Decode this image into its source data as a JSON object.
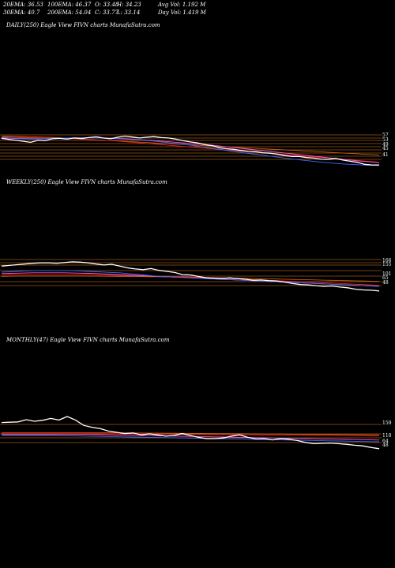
{
  "header": {
    "ema20": "20EMA: 36.53",
    "ema100": "100EMA: 46.37",
    "open": "O: 33.48",
    "high": "H: 34.23",
    "avg_vol": "Avg Vol: 1.192  M",
    "ema30": "30EMA: 40.7",
    "ema200": "200EMA: 54.04",
    "close": "C: 33.77",
    "low": "L: 33.14",
    "day_vol": "Day Vol: 1.419 M"
  },
  "panels": {
    "daily": "DAILY(250) Eagle   View  FIVN  charts MunafaSutra.com",
    "weekly": "WEEKLY(250) Eagle   View  FIVN  charts MunafaSutra.com",
    "monthly": "MONTHLY(47) Eagle   View  FIVN  charts MunafaSutra.com"
  },
  "colors": {
    "price": "#ffffff",
    "ema_blue": "#3a6bff",
    "ema_pink": "#ff55cc",
    "ema_orange": "#d96a10",
    "ema_red": "#ff2222",
    "level_line": "#b5651d"
  },
  "chart_data": [
    {
      "type": "line",
      "title": "DAILY(250) Eagle   View  FIVN  charts MunafaSutra.com",
      "axis_labels": [
        "57",
        "53",
        "49",
        "45",
        "41"
      ],
      "series": [
        {
          "values": [
            57,
            56.5,
            56,
            55.5,
            55,
            56,
            55.8,
            56.8,
            57,
            56.6,
            57.2,
            56.9,
            57.4,
            57.8,
            57.2,
            56.8,
            57.6,
            58.2,
            57.7,
            57.2,
            57.6,
            57.9,
            57.4,
            57.2,
            56.6,
            55.8,
            55.2,
            54.7,
            53.8,
            53.3,
            52.2,
            51.7,
            51.4,
            50.8,
            50.3,
            50.2,
            49.6,
            49.4,
            48.9,
            48.2,
            47.7,
            47.7,
            47.2,
            46.9,
            46.3,
            46.2,
            46.8,
            45.9,
            45.3,
            44.7,
            43.7,
            43.4,
            43.4
          ]
        },
        {
          "values": [
            57.5,
            57.3,
            57.1,
            57,
            56.9,
            56.9,
            56.9,
            57,
            57.1,
            57.2,
            57.3,
            57.3,
            57.3,
            57.2,
            57.1,
            56.9,
            56.8,
            56.6,
            56.4,
            56.2,
            56,
            55.6,
            55.2,
            54.8,
            54.4,
            54,
            53.5,
            53,
            52.5,
            52,
            51.4,
            50.8,
            50.3,
            49.8,
            49.3,
            48.9,
            48.4,
            47.9,
            47.4,
            46.9,
            46.4,
            46,
            45.6,
            45.2,
            44.8,
            44.5,
            44.2,
            43.9,
            43.7,
            43.5,
            43.3,
            43.2,
            43.1
          ]
        },
        {
          "values": [
            57.3,
            57.1,
            56.9,
            56.8,
            56.7,
            56.7,
            56.8,
            56.9,
            57,
            57.1,
            57.2,
            57.3,
            57.3,
            57.3,
            57.2,
            57.1,
            57,
            56.8,
            56.6,
            56.4,
            56.2,
            55.9,
            55.6,
            55.3,
            55,
            54.7,
            54.4,
            54.1,
            53.8,
            53.5,
            53.1,
            52.7,
            52.3,
            51.9,
            51.5,
            51.1,
            50.7,
            50.3,
            49.9,
            49.5,
            49.1,
            48.7,
            48.3,
            47.9,
            47.5,
            47.1,
            46.7,
            46.3,
            45.9,
            45.5,
            45.2,
            44.9,
            44.6
          ]
        },
        {
          "values": [
            57.8,
            57.7,
            57.6,
            57.5,
            57.4,
            57.3,
            57.2,
            57.1,
            57,
            56.9,
            56.8,
            56.6,
            56.4,
            56.2,
            56,
            55.8,
            55.6,
            55.3,
            55,
            54.7,
            54.4,
            54.1,
            53.8,
            53.5,
            53.2,
            52.9,
            52.6,
            52.3,
            52,
            51.7,
            51.4,
            51.1,
            50.8,
            50.5,
            50.2,
            49.9,
            49.6,
            49.3,
            49,
            48.7,
            48.4,
            48.1,
            47.8,
            47.5,
            47.2,
            46.9,
            46.6,
            46.3,
            46,
            45.7,
            45.4,
            45.1,
            44.8
          ]
        },
        {
          "values": [
            58.2,
            58.1,
            58,
            57.9,
            57.8,
            57.7,
            57.6,
            57.5,
            57.3,
            57.1,
            56.9,
            56.7,
            56.5,
            56.3,
            56.1,
            55.9,
            55.7,
            55.5,
            55.3,
            55.1,
            54.9,
            54.7,
            54.5,
            54.3,
            54.1,
            53.9,
            53.7,
            53.5,
            53.3,
            53.1,
            52.9,
            52.7,
            52.5,
            52.3,
            52.1,
            51.9,
            51.7,
            51.5,
            51.3,
            51.1,
            50.9,
            50.7,
            50.5,
            50.3,
            50.1,
            49.9,
            49.7,
            49.5,
            49.3,
            49.1,
            48.9,
            48.7,
            48.5
          ]
        }
      ]
    },
    {
      "type": "line",
      "title": "WEEKLY(250) Eagle   View  FIVN  charts MunafaSutra.com",
      "axis_labels": [
        "166",
        "155",
        "101",
        "65",
        "48"
      ],
      "series": [
        {
          "values": [
            125,
            127,
            129,
            131,
            133,
            134,
            134,
            133,
            135,
            137,
            136,
            134,
            131,
            128,
            130,
            125,
            120,
            117,
            115,
            118,
            113,
            110,
            107,
            101,
            100,
            96,
            92,
            91,
            90,
            92,
            90,
            88,
            85,
            86,
            84,
            83,
            80,
            76,
            73,
            72,
            70,
            68,
            69,
            66,
            64,
            60,
            58,
            57,
            55
          ]
        },
        {
          "values": [
            108,
            109,
            110,
            111,
            112,
            112,
            112,
            112,
            112,
            112,
            111,
            110,
            109,
            108,
            107,
            106,
            104,
            102,
            100,
            98,
            96,
            95,
            94,
            93,
            92,
            91,
            90,
            89,
            88,
            87,
            86,
            85,
            84,
            83,
            82,
            81,
            80,
            79,
            78,
            77,
            76,
            75,
            74,
            73,
            72,
            71,
            70,
            69,
            68
          ]
        },
        {
          "values": [
            104,
            104.5,
            105,
            105.5,
            106,
            106,
            106,
            106,
            106,
            105.5,
            105,
            104.5,
            104,
            103,
            102,
            101,
            100,
            99,
            98,
            97,
            96,
            95,
            94,
            93,
            92,
            91,
            90,
            89,
            88,
            87,
            86,
            85,
            84,
            83,
            82,
            81,
            80,
            79,
            78,
            77,
            76,
            75,
            74,
            73,
            72,
            71,
            70,
            69,
            68
          ]
        },
        {
          "values": [
            100,
            100.5,
            101,
            101,
            101,
            101,
            101,
            101,
            101,
            101,
            101,
            101,
            100.5,
            100,
            99.5,
            99,
            98.5,
            98,
            97.5,
            97,
            96.5,
            96,
            95.5,
            95,
            94.5,
            94,
            93,
            92,
            91,
            90,
            89,
            88,
            87,
            86,
            85,
            84,
            83,
            82,
            81,
            80,
            79,
            78,
            77,
            76,
            75,
            74,
            73,
            72,
            71
          ]
        },
        {
          "values": [
            96,
            96.5,
            97,
            97,
            97,
            97,
            97,
            97,
            97,
            97,
            97,
            97,
            96.8,
            96.6,
            96.4,
            96.2,
            96,
            95.7,
            95.4,
            95.1,
            94.8,
            94.5,
            94.2,
            93.9,
            93.5,
            93.1,
            92.7,
            92.3,
            91.9,
            91.5,
            91,
            90.5,
            90,
            89.5,
            89,
            88.5,
            88,
            87.5,
            87,
            86.5,
            86,
            85.5,
            85,
            84.5,
            84,
            83.5,
            83,
            82.5,
            82
          ]
        }
      ]
    },
    {
      "type": "line",
      "title": "MONTHLY(47) Eagle   View  FIVN  charts MunafaSutra.com",
      "axis_labels": [
        "159",
        "110",
        "64",
        "48"
      ],
      "series": [
        {
          "values": [
            131,
            132,
            133,
            140,
            135,
            138,
            144,
            139,
            150,
            139,
            122,
            116,
            112,
            104,
            100,
            96,
            98,
            92,
            95,
            92,
            88,
            90,
            96,
            90,
            84,
            80,
            80,
            82,
            88,
            92,
            84,
            79,
            80,
            76,
            80,
            78,
            74,
            68,
            64,
            65,
            66,
            64,
            62,
            59,
            57,
            52,
            48
          ]
        },
        {
          "values": [
            90,
            90,
            90,
            90,
            90,
            90,
            90,
            89.5,
            89,
            88.5,
            88,
            87.5,
            87,
            86.5,
            86,
            85.5,
            85,
            84.5,
            84,
            83.5,
            83,
            82.5,
            82,
            81.5,
            81,
            80.5,
            80,
            79.5,
            79,
            78.5,
            78,
            77.5,
            77,
            76.5,
            76,
            75.5,
            75,
            74.5,
            74,
            73.5,
            73,
            72.5,
            72,
            71.5,
            71,
            70.5,
            70
          ]
        },
        {
          "values": [
            93,
            93,
            93,
            93,
            93,
            93,
            93,
            93,
            93,
            93,
            93,
            93,
            92.5,
            92,
            91.5,
            91,
            90.5,
            90,
            89.5,
            89,
            88.5,
            88,
            87.5,
            87,
            86.5,
            86,
            85.5,
            85,
            84.5,
            84,
            83.5,
            83,
            82.5,
            82,
            81.5,
            81,
            80.5,
            80,
            79.5,
            79,
            78.5,
            78,
            77.5,
            77,
            76.5,
            76,
            75.5
          ]
        },
        {
          "values": [
            96,
            96,
            96,
            96,
            96,
            96,
            96,
            96,
            96,
            96,
            96,
            96,
            95.8,
            95.6,
            95.4,
            95.2,
            95,
            94.8,
            94.6,
            94.4,
            94.2,
            94,
            93.8,
            93.6,
            93.4,
            93.2,
            93,
            92.8,
            92.6,
            92.4,
            92.2,
            92,
            91.8,
            91.6,
            91.4,
            91.2,
            91,
            90.8,
            90.6,
            90.4,
            90.2,
            90,
            89.8,
            89.6,
            89.4,
            89.2,
            89
          ]
        },
        {
          "values": [
            99,
            99,
            99,
            99,
            99,
            99,
            99,
            99,
            99,
            99,
            99,
            99,
            98.8,
            98.6,
            98.4,
            98.2,
            98,
            97.8,
            97.6,
            97.4,
            97.2,
            97,
            96.8,
            96.6,
            96.4,
            96.2,
            96,
            95.8,
            95.6,
            95.4,
            95.2,
            95,
            94.8,
            94.6,
            94.4,
            94.2,
            94,
            93.8,
            93.6,
            93.4,
            93.2,
            93,
            92.8,
            92.6,
            92.4,
            92.2,
            92
          ]
        }
      ]
    }
  ]
}
